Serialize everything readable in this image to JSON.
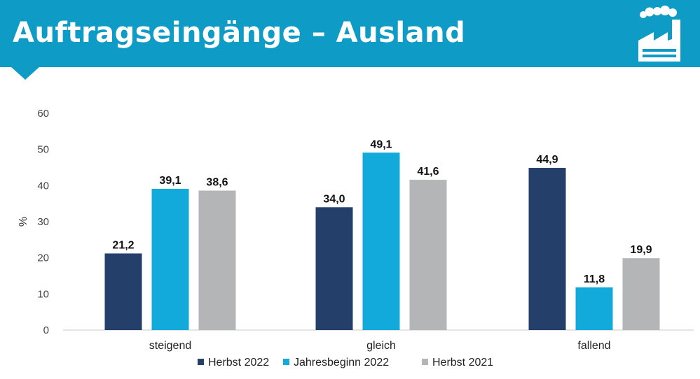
{
  "header": {
    "title": "Auftragseingänge – Ausland",
    "icon": "factory-icon",
    "color": "#0e9cc6"
  },
  "chart_data": {
    "type": "bar",
    "categories": [
      "steigend",
      "gleich",
      "fallend"
    ],
    "series": [
      {
        "name": "Herbst 2022",
        "color": "#253f6b",
        "values": [
          21.2,
          34.0,
          44.9
        ],
        "labels": [
          "21,2",
          "34,0",
          "44,9"
        ]
      },
      {
        "name": "Jahresbeginn 2022",
        "color": "#12aadb",
        "values": [
          39.1,
          49.1,
          11.8
        ],
        "labels": [
          "39,1",
          "49,1",
          "11,8"
        ]
      },
      {
        "name": "Herbst 2021",
        "color": "#b3b5b7",
        "values": [
          38.6,
          41.6,
          19.9
        ],
        "labels": [
          "38,6",
          "41,6",
          "19,9"
        ]
      }
    ],
    "ylabel": "%",
    "ylim": [
      0,
      60
    ],
    "yticks": [
      "0",
      "10",
      "20",
      "30",
      "40",
      "50",
      "60"
    ],
    "grid": false,
    "legend": "bottom"
  }
}
